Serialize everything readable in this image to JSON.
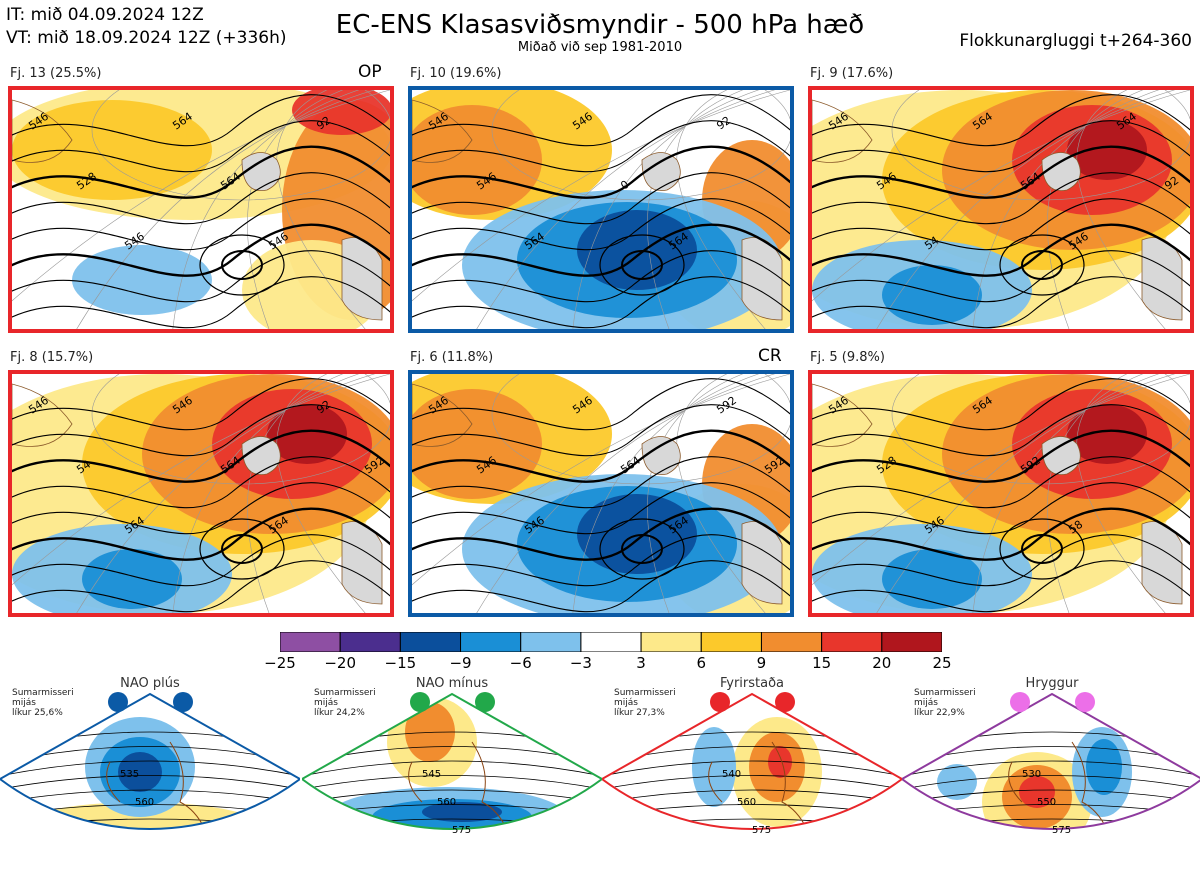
{
  "header": {
    "issue": "IT: mið 04.09.2024 12Z",
    "valid": "VT: mið 18.09.2024 12Z  (+336h)",
    "title": "EC-ENS Klasasviðsmyndir - 500 hPa hæð",
    "subtitle": "Miðað við sep 1981-2010",
    "window": "Flokkunargluggi t+264-360"
  },
  "panels": [
    {
      "label": "Fj. 13 (25.5%)",
      "tag": "OP",
      "regime": "nao-minus-like",
      "border": "#e8262a",
      "contours": [
        "546",
        "528",
        "546",
        "564",
        "564",
        "546",
        "92"
      ]
    },
    {
      "label": "Fj. 10 (19.6%)",
      "tag": "",
      "regime": "nao-plus",
      "border": "#0b5aa6",
      "contours": [
        "546",
        "546",
        "564",
        "546",
        "0",
        "564",
        "92"
      ]
    },
    {
      "label": "Fj. 9 (17.6%)",
      "tag": "",
      "regime": "blocking",
      "border": "#e8262a",
      "contours": [
        "546",
        "546",
        "54",
        "564",
        "564",
        "546",
        "564",
        "92"
      ]
    },
    {
      "label": "Fj. 8 (15.7%)",
      "tag": "",
      "regime": "blocking",
      "border": "#e8262a",
      "contours": [
        "546",
        "54",
        "564",
        "546",
        "564",
        "564",
        "92",
        "592"
      ]
    },
    {
      "label": "Fj. 6 (11.8%)",
      "tag": "CR",
      "regime": "nao-plus",
      "border": "#0b5aa6",
      "contours": [
        "546",
        "546",
        "546",
        "546",
        "564",
        "564",
        "592",
        "592"
      ]
    },
    {
      "label": "Fj. 5 (9.8%)",
      "tag": "",
      "regime": "blocking",
      "border": "#e8262a",
      "contours": [
        "546",
        "528",
        "546",
        "564",
        "592",
        "58"
      ]
    }
  ],
  "colorbar": {
    "ticks": [
      "−25",
      "−20",
      "−15",
      "−9",
      "−6",
      "−3",
      "3",
      "6",
      "9",
      "15",
      "20",
      "25"
    ],
    "colors": [
      "#8e4fa3",
      "#4b2e8e",
      "#0b4f9c",
      "#1a8fd6",
      "#7ec1ec",
      "#ffffff",
      "#fde98a",
      "#fcc92b",
      "#f18d2f",
      "#e8362c",
      "#b0161d"
    ]
  },
  "regimes": [
    {
      "title": "NAO plús",
      "note": [
        "Sumarmisseri",
        "mijás",
        "líkur 25,6%"
      ],
      "dot_color": "#0b5aa6",
      "outline": "#0b5aa6",
      "labels": [
        "535",
        "560"
      ]
    },
    {
      "title": "NAO mínus",
      "note": [
        "Sumarmisseri",
        "mijás",
        "líkur 24,2%"
      ],
      "dot_color": "#22a84a",
      "outline": "#22a84a",
      "labels": [
        "545",
        "560",
        "575"
      ]
    },
    {
      "title": "Fyrirstaða",
      "note": [
        "Sumarmisseri",
        "mijás",
        "líkur 27,3%"
      ],
      "dot_color": "#e8262a",
      "outline": "#e8262a",
      "labels": [
        "540",
        "560",
        "575"
      ]
    },
    {
      "title": "Hryggur",
      "note": [
        "Sumarmisseri",
        "mijás",
        "líkur 22,9%"
      ],
      "dot_color": "#ec6fe8",
      "outline": "#8e3a9e",
      "labels": [
        "530",
        "550",
        "575"
      ]
    }
  ]
}
